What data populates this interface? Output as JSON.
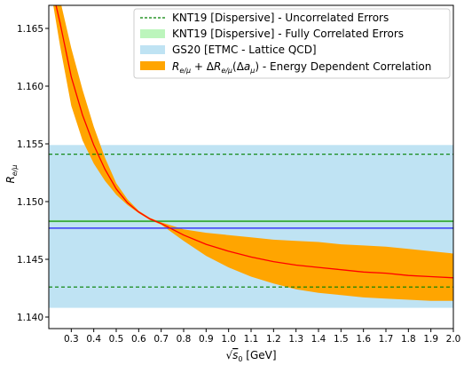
{
  "chart_data": {
    "type": "line",
    "xlabel": "√s₀ [GeV]",
    "ylabel": "R_{e/μ}",
    "xlim": [
      0.2,
      2.0
    ],
    "ylim": [
      1.139,
      1.167
    ],
    "x_ticks": [
      "0.3",
      "0.4",
      "0.5",
      "0.6",
      "0.7",
      "0.8",
      "0.9",
      "1.0",
      "1.1",
      "1.2",
      "1.3",
      "1.4",
      "1.5",
      "1.6",
      "1.7",
      "1.8",
      "1.9",
      "2.0"
    ],
    "y_ticks": [
      "1.140",
      "1.145",
      "1.150",
      "1.155",
      "1.160",
      "1.165"
    ],
    "legend_position": "top-right",
    "legend": [
      "KNT19 [Dispersive] - Uncorrelated Errors",
      "KNT19 [Dispersive] - Fully Correlated Errors",
      "GS20 [ETMC - Lattice QCD]",
      "R_{e/μ} + ΔR_{e/μ}(Δa_μ) - Energy Dependent Correlation"
    ],
    "series": [
      {
        "name": "KNT19 [Dispersive] - Uncorrelated Errors",
        "kind": "hlines",
        "values": [
          1.1541,
          1.1426
        ],
        "color": "#008000",
        "style": "dashed"
      },
      {
        "name": "KNT19 [Dispersive] - Fully Correlated Errors",
        "kind": "band_with_line",
        "center": 1.1483,
        "band": [
          1.1482,
          1.1484
        ],
        "color": "#90ee90",
        "line_color": "#2ca02c"
      },
      {
        "name": "GS20 [ETMC - Lattice QCD]",
        "kind": "band_with_line",
        "center": 1.1477,
        "band": [
          1.1408,
          1.1549
        ],
        "color": "#bfe3f3",
        "line_color": "#3b3bf5"
      },
      {
        "name": "R_{e/μ} + ΔR_{e/μ}(Δa_μ) - Energy Dependent Correlation",
        "kind": "band_with_line",
        "color": "#ffa500",
        "line_color": "#ff0000",
        "x": [
          0.22,
          0.25,
          0.3,
          0.35,
          0.4,
          0.45,
          0.5,
          0.55,
          0.6,
          0.65,
          0.7,
          0.75,
          0.8,
          0.9,
          1.0,
          1.1,
          1.2,
          1.3,
          1.4,
          1.5,
          1.6,
          1.7,
          1.8,
          1.9,
          2.0
        ],
        "center": [
          1.168,
          1.1655,
          1.1608,
          1.1575,
          1.1549,
          1.1528,
          1.1511,
          1.1499,
          1.1491,
          1.1485,
          1.1481,
          1.1476,
          1.1471,
          1.1463,
          1.1457,
          1.1452,
          1.1448,
          1.1445,
          1.1443,
          1.1441,
          1.1439,
          1.1438,
          1.1436,
          1.1435,
          1.1434
        ],
        "lower": [
          1.167,
          1.1635,
          1.1583,
          1.1553,
          1.1533,
          1.1518,
          1.1506,
          1.1497,
          1.149,
          1.1484,
          1.148,
          1.1473,
          1.1466,
          1.1453,
          1.1443,
          1.1435,
          1.1429,
          1.1424,
          1.1421,
          1.1419,
          1.1417,
          1.1416,
          1.1415,
          1.1414,
          1.1414
        ],
        "upper": [
          1.169,
          1.1675,
          1.1633,
          1.1597,
          1.1565,
          1.1538,
          1.1516,
          1.1502,
          1.1492,
          1.1486,
          1.1482,
          1.1479,
          1.1476,
          1.1473,
          1.1471,
          1.1469,
          1.1467,
          1.1466,
          1.1465,
          1.1463,
          1.1462,
          1.1461,
          1.1459,
          1.1457,
          1.1455
        ]
      }
    ]
  }
}
